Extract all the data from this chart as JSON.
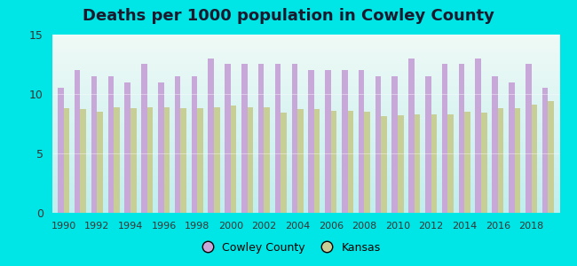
{
  "title": "Deaths per 1000 population in Cowley County",
  "years": [
    1990,
    1991,
    1992,
    1993,
    1994,
    1995,
    1996,
    1997,
    1998,
    1999,
    2000,
    2001,
    2002,
    2003,
    2004,
    2005,
    2006,
    2007,
    2008,
    2009,
    2010,
    2011,
    2012,
    2013,
    2014,
    2015,
    2016,
    2017,
    2018,
    2019
  ],
  "cowley": [
    10.5,
    12.0,
    11.5,
    11.5,
    11.0,
    12.5,
    11.0,
    11.5,
    11.5,
    13.0,
    12.5,
    12.5,
    12.5,
    12.5,
    12.5,
    12.0,
    12.0,
    12.0,
    12.0,
    11.5,
    11.5,
    13.0,
    11.5,
    12.5,
    12.5,
    13.0,
    11.5,
    11.0,
    12.5,
    10.5
  ],
  "kansas": [
    8.8,
    8.7,
    8.5,
    8.9,
    8.8,
    8.9,
    8.9,
    8.8,
    8.8,
    8.9,
    9.0,
    8.9,
    8.9,
    8.4,
    8.7,
    8.7,
    8.6,
    8.6,
    8.5,
    8.1,
    8.2,
    8.3,
    8.3,
    8.3,
    8.5,
    8.4,
    8.8,
    8.8,
    9.1,
    9.4
  ],
  "cowley_color": "#c8a8d8",
  "kansas_color": "#c8cf96",
  "background_color": "#00e5e5",
  "plot_bg_top": "#f0faf6",
  "plot_bg_bottom": "#c0eeee",
  "ylim": [
    0,
    15
  ],
  "yticks": [
    0,
    5,
    10,
    15
  ],
  "bar_width": 0.35,
  "title_fontsize": 13,
  "legend_label_cowley": "Cowley County",
  "legend_label_kansas": "Kansas"
}
